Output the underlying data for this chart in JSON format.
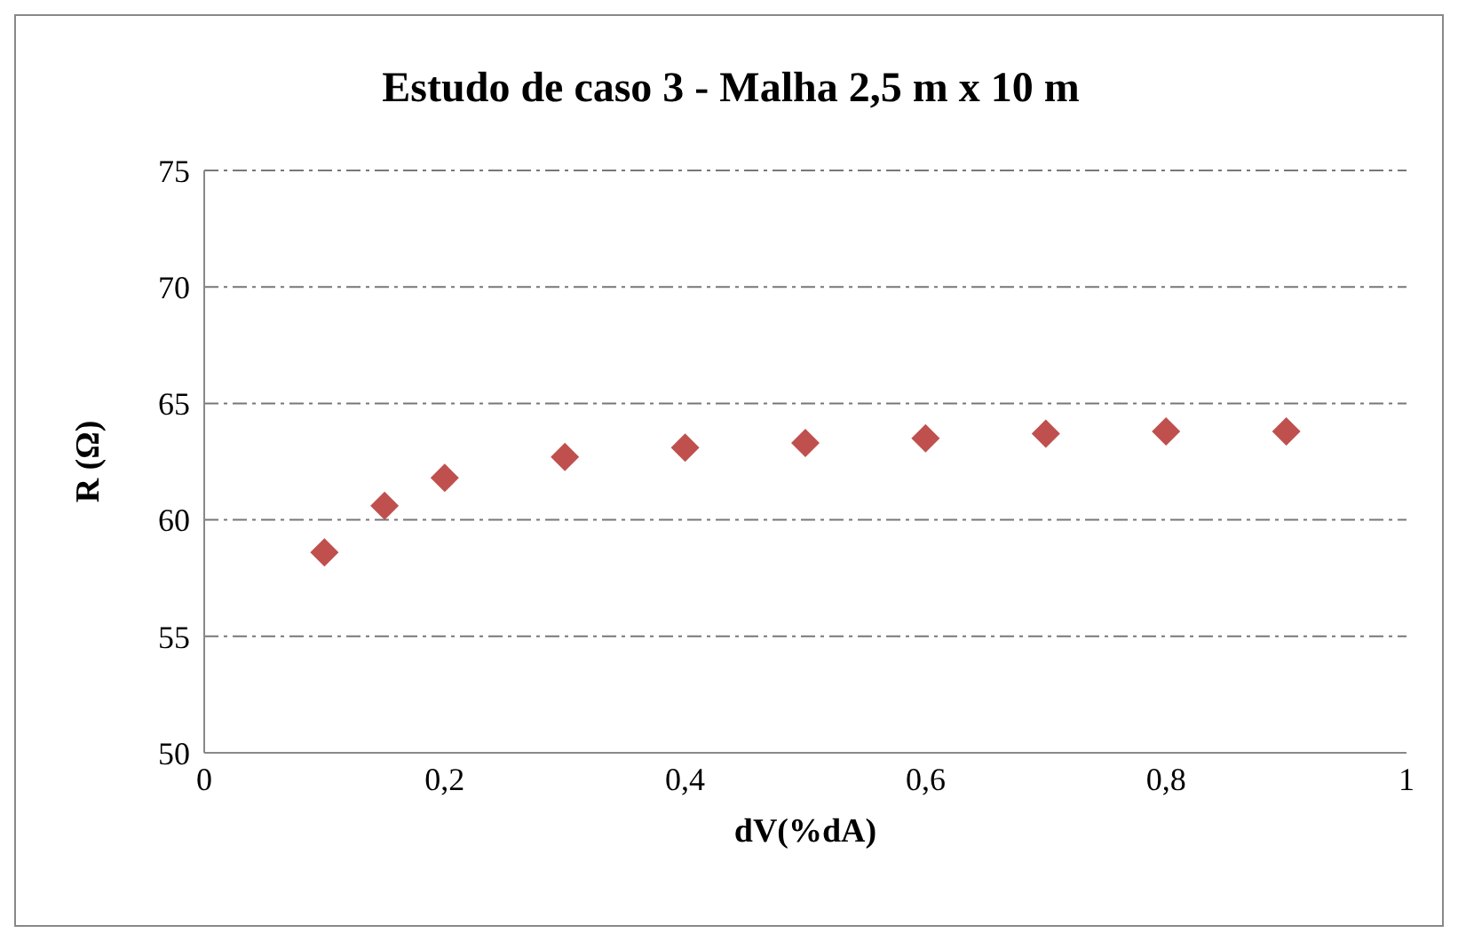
{
  "chart_data": {
    "type": "scatter",
    "title": "Estudo de caso 3 - Malha 2,5 m x 10 m",
    "xlabel": "dV(%dA)",
    "ylabel": "R (Ω)",
    "x": [
      0.1,
      0.15,
      0.2,
      0.3,
      0.4,
      0.5,
      0.6,
      0.7,
      0.8,
      0.9
    ],
    "series": [
      {
        "color": "#c0504d",
        "values": [
          58.6,
          60.6,
          61.8,
          62.7,
          63.1,
          63.3,
          63.5,
          63.7,
          63.8,
          63.8
        ]
      }
    ],
    "xlim": [
      0,
      1
    ],
    "xticks": [
      0,
      {
        "value": 0.2,
        "label": "0,2"
      },
      {
        "value": 0.4,
        "label": "0,4"
      },
      {
        "value": 0.6,
        "label": "0,6"
      },
      {
        "value": 0.8,
        "label": "0,8"
      },
      1
    ],
    "ylim": [
      50,
      75
    ],
    "yticks": [
      50,
      55,
      60,
      65,
      70,
      75
    ],
    "grid": "y",
    "marker": "diamond",
    "legend": false
  }
}
